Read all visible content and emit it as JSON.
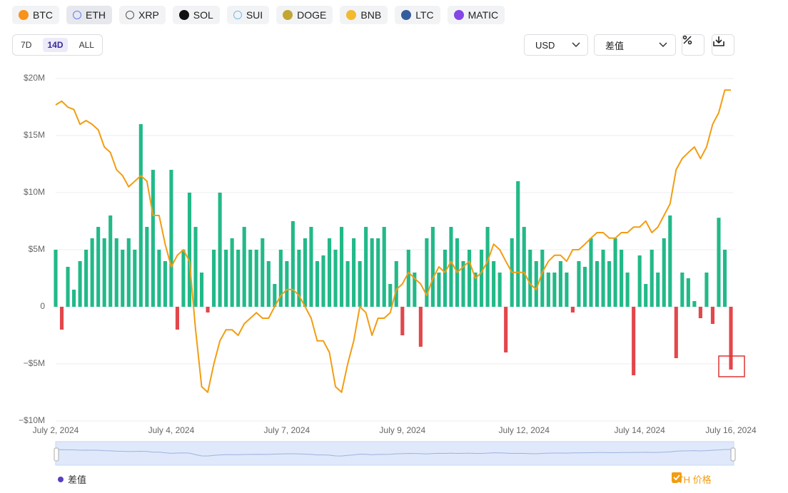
{
  "coins": [
    "BTC",
    "ETH",
    "XRP",
    "SOL",
    "SUI",
    "DOGE",
    "BNB",
    "LTC",
    "MATIC"
  ],
  "ranges": [
    "7D",
    "14D",
    "ALL"
  ],
  "currency": "USD",
  "metric": "差值",
  "chart_data": {
    "type": "bar-line",
    "categories": [
      "July 2, 2024",
      null,
      null,
      null,
      null,
      null,
      null,
      null,
      null,
      null,
      null,
      null,
      null,
      null,
      null,
      null,
      null,
      null,
      null,
      "July 4, 2024",
      null,
      null,
      null,
      null,
      null,
      null,
      null,
      null,
      null,
      null,
      null,
      null,
      null,
      null,
      null,
      null,
      null,
      null,
      "July 7, 2024",
      null,
      null,
      null,
      null,
      null,
      null,
      null,
      null,
      null,
      null,
      null,
      null,
      null,
      null,
      null,
      null,
      null,
      null,
      "July 9, 2024",
      null,
      null,
      null,
      null,
      null,
      null,
      null,
      null,
      null,
      null,
      null,
      null,
      null,
      null,
      null,
      null,
      null,
      null,
      null,
      "July 12, 2024",
      null,
      null,
      null,
      null,
      null,
      null,
      null,
      null,
      null,
      null,
      null,
      null,
      null,
      null,
      null,
      null,
      null,
      null,
      "July 14, 2024",
      null,
      null,
      null,
      null,
      null,
      null,
      null,
      null,
      null,
      null,
      null,
      null,
      null,
      null,
      "July 16, 2024"
    ],
    "series": [
      {
        "name": "差值",
        "color": "#22b989",
        "negative_color": "#e2474b",
        "values": [
          5,
          -2,
          3.5,
          1.5,
          4,
          5,
          6,
          7,
          6,
          8,
          6,
          5,
          6,
          5,
          16,
          7,
          12,
          5,
          4,
          12,
          -2,
          5,
          10,
          7,
          3,
          -0.5,
          5,
          10,
          5,
          6,
          5,
          7,
          5,
          5,
          6,
          4,
          2,
          5,
          4,
          7.5,
          5,
          6,
          7,
          4,
          4.5,
          6,
          5,
          7,
          4,
          6,
          4,
          7,
          6,
          6,
          7,
          2,
          4,
          -2.5,
          5,
          3,
          -3.5,
          6,
          7,
          3,
          5,
          7,
          6,
          4,
          5,
          3,
          5,
          7,
          4,
          3,
          -4,
          6,
          11,
          7,
          5,
          4,
          5,
          3,
          3,
          4,
          3,
          -0.5,
          4,
          3.5,
          6,
          4,
          5,
          4,
          6,
          5,
          3,
          -6,
          4.5,
          2,
          5,
          3,
          6,
          8,
          -4.5,
          3,
          2.5,
          0.5,
          -1,
          3,
          -1.5,
          7.8,
          5,
          -5.5
        ]
      },
      {
        "name": "ETH 价格",
        "color": "#f29d12",
        "axis": "y2",
        "values": [
          3443,
          3451,
          3438,
          3433,
          3401,
          3409,
          3401,
          3389,
          3352,
          3340,
          3303,
          3290,
          3266,
          3278,
          3290,
          3278,
          3204,
          3204,
          3142,
          3093,
          3118,
          3130,
          3105,
          2957,
          2834,
          2822,
          2883,
          2933,
          2957,
          2957,
          2945,
          2970,
          2982,
          2994,
          2982,
          2982,
          3007,
          3031,
          3044,
          3044,
          3031,
          3007,
          2982,
          2933,
          2933,
          2908,
          2834,
          2822,
          2883,
          2933,
          3007,
          2994,
          2945,
          2982,
          2982,
          2994,
          3044,
          3056,
          3081,
          3068,
          3056,
          3031,
          3068,
          3093,
          3081,
          3105,
          3081,
          3093,
          3105,
          3068,
          3081,
          3105,
          3142,
          3130,
          3105,
          3081,
          3081,
          3081,
          3056,
          3044,
          3081,
          3105,
          3118,
          3118,
          3105,
          3130,
          3130,
          3142,
          3155,
          3167,
          3167,
          3155,
          3155,
          3167,
          3167,
          3179,
          3179,
          3192,
          3167,
          3179,
          3204,
          3229,
          3303,
          3327,
          3340,
          3352,
          3327,
          3352,
          3401,
          3426,
          3475,
          3475
        ]
      }
    ],
    "ylim": [
      -10,
      20
    ],
    "yticks": [
      {
        "value": -10,
        "label": "−$10M"
      },
      {
        "value": -5,
        "label": "−$5M"
      },
      0,
      {
        "value": 5,
        "label": "$5M"
      },
      {
        "value": 10,
        "label": "$10M"
      },
      {
        "value": 15,
        "label": "$15M"
      },
      {
        "value": 20,
        "label": "$20M"
      }
    ],
    "y2lim": [
      2760,
      3500
    ],
    "grid": true
  }
}
